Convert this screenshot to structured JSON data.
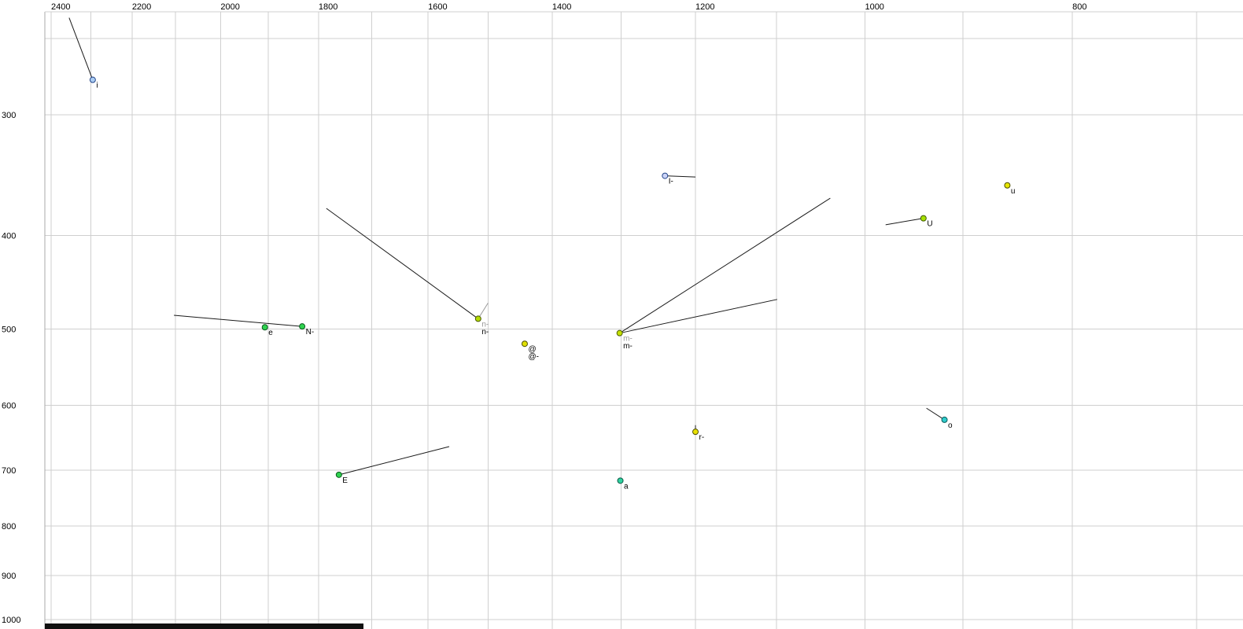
{
  "chart_data": {
    "type": "scatter",
    "title": "",
    "description": "Vowel formant plot (F2 on top axis decreasing left-to-right, F1 on left axis increasing downward, both log-scaled) with vowel tokens and formant trajectories",
    "x_axis": {
      "unit": "Hz",
      "scale": "log",
      "reversed": true,
      "label_ticks": [
        2400,
        2200,
        2000,
        1800,
        1600,
        1400,
        1200,
        1000,
        800
      ],
      "grid_from": 2400,
      "grid_to": 700,
      "grid_step": 100
    },
    "y_axis": {
      "unit": "Hz",
      "scale": "log",
      "label_ticks": [
        300,
        400,
        500,
        600,
        700,
        800,
        900,
        1000
      ],
      "gridlines": [
        250,
        300,
        400,
        500,
        600,
        700,
        800,
        900,
        1000
      ]
    },
    "points": [
      {
        "label": "i",
        "f2": 2295,
        "f1": 276,
        "fill": "#aaccf2",
        "stroke": "#224488",
        "trajectories": [
          {
            "f2": 2354,
            "f1": 238
          }
        ]
      },
      {
        "label": "I-",
        "f2": 1240,
        "f1": 347,
        "fill": "#ccd4f8",
        "stroke": "#224488",
        "trajectories": [
          {
            "f2": 1200,
            "f1": 348
          }
        ]
      },
      {
        "label": "u",
        "f2": 858,
        "f1": 355,
        "fill": "#e6e600",
        "stroke": "#4d4d00",
        "trajectories": []
      },
      {
        "label": "U",
        "f2": 939,
        "f1": 384,
        "fill": "#a6e000",
        "stroke": "#3f5a00",
        "trajectories": [
          {
            "f2": 978,
            "f1": 390
          }
        ]
      },
      {
        "label": "e",
        "f2": 1907,
        "f1": 498,
        "fill": "#2fd24f",
        "stroke": "#0a5a1e",
        "trajectories": []
      },
      {
        "label": "N-",
        "f2": 1832,
        "f1": 497,
        "fill": "#2fd24f",
        "stroke": "#0a5a1e",
        "trajectories": [
          {
            "f2": 2103,
            "f1": 484
          }
        ]
      },
      {
        "label": "n-",
        "ghost_label": "n-",
        "f2": 1516,
        "f1": 488,
        "fill": "#b4dc00",
        "stroke": "#4a5a00",
        "trajectories": [
          {
            "f2": 1785,
            "f1": 375
          },
          {
            "f2": 1500,
            "f1": 470,
            "color": "#999999"
          }
        ]
      },
      {
        "label": "@",
        "label2": "@-",
        "f2": 1442,
        "f1": 518,
        "fill": "#e0e000",
        "stroke": "#4d4d00",
        "trajectories": []
      },
      {
        "label": "m-",
        "ghost_label": "m-",
        "f2": 1302,
        "f1": 505,
        "fill": "#c4e000",
        "stroke": "#4a5a00",
        "trajectories": [
          {
            "f2": 1038,
            "f1": 366
          },
          {
            "f2": 1099,
            "f1": 466
          }
        ]
      },
      {
        "label": "r-",
        "f2": 1200,
        "f1": 639,
        "fill": "#e8e000",
        "stroke": "#4d4d00",
        "trajectories": [
          {
            "f2": 1200,
            "f1": 629
          }
        ]
      },
      {
        "label": "o",
        "f2": 918,
        "f1": 621,
        "fill": "#2fcccc",
        "stroke": "#0a5a5a",
        "trajectories": [
          {
            "f2": 936,
            "f1": 604
          }
        ]
      },
      {
        "label": "E",
        "f2": 1761,
        "f1": 708,
        "fill": "#2fd24f",
        "stroke": "#0a5a1e",
        "trajectories": [
          {
            "f2": 1564,
            "f1": 662
          }
        ]
      },
      {
        "label": "a",
        "f2": 1301,
        "f1": 718,
        "fill": "#2fd2a0",
        "stroke": "#0a5a46",
        "trajectories": []
      }
    ],
    "colors": {
      "background": "#ffffff",
      "grid": "#cfcfcf",
      "axis_border": "#aaaaaa",
      "trajectory": "#1a1a1a",
      "ghost_label": "#999999",
      "point_label": "#000000",
      "scrollbar": "#111111"
    }
  },
  "scrollbar": {
    "orientation": "horizontal",
    "thumb_present": true
  }
}
